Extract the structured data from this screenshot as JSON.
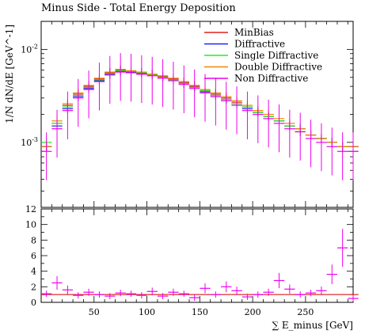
{
  "chart_data": {
    "type": "line",
    "title": "Minus Side - Total Energy Deposition",
    "xlabel": "∑ E_minus [GeV]",
    "ylabel": "1/N dN/dE [GeV^-1]",
    "xlim": [
      0,
      295
    ],
    "ylim_main": [
      0.0002,
      0.02
    ],
    "yscale_main": "log",
    "ylim_ratio": [
      0,
      12
    ],
    "x_ticks": [
      50,
      100,
      150,
      200,
      250
    ],
    "y_ticks_main": [
      "10^-3",
      "10^-2"
    ],
    "y_ticks_ratio": [
      0,
      2,
      4,
      6,
      8,
      10,
      12
    ],
    "legend_position": "top-right",
    "colors": {
      "MinBias": "#dd2222",
      "Diffractive": "#2222ee",
      "Single Diffractive": "#22ee22",
      "Double Diffractive": "#ee8800",
      "Non Diffractive": "#ee00ee"
    },
    "series": [
      {
        "name": "MinBias",
        "color": "#dd2222",
        "x": [
          5,
          15,
          25,
          35,
          45,
          55,
          65,
          75,
          85,
          95,
          105,
          115,
          125,
          135,
          145,
          155,
          165,
          175,
          185,
          195,
          205,
          215,
          225,
          235,
          245,
          255,
          265,
          275,
          285,
          295
        ],
        "y": [
          0.0009,
          0.0016,
          0.0025,
          0.0033,
          0.004,
          0.0048,
          0.0056,
          0.006,
          0.0058,
          0.0056,
          0.0054,
          0.0051,
          0.0048,
          0.0044,
          0.004,
          0.0036,
          0.0033,
          0.003,
          0.0027,
          0.0024,
          0.0021,
          0.0019,
          0.0017,
          0.0015,
          0.0013,
          0.0012,
          0.0011,
          0.001,
          0.0009,
          0.0009
        ]
      },
      {
        "name": "Diffractive",
        "color": "#2222ee",
        "x": [
          5,
          15,
          25,
          35,
          45,
          55,
          65,
          75,
          85,
          95,
          105,
          115,
          125,
          135,
          145,
          155,
          165,
          175,
          185,
          195,
          205,
          215,
          225,
          235,
          245,
          255,
          265,
          275,
          285,
          295
        ],
        "y": [
          0.0009,
          0.0015,
          0.0023,
          0.0031,
          0.0038,
          0.0046,
          0.0054,
          0.0058,
          0.0057,
          0.0055,
          0.0053,
          0.005,
          0.0047,
          0.0043,
          0.0039,
          0.0035,
          0.0032,
          0.0029,
          0.0026,
          0.0023,
          0.0021,
          0.0019,
          0.0017,
          0.0015,
          0.0014,
          0.0012,
          0.0011,
          0.001,
          0.0009,
          0.0009
        ]
      },
      {
        "name": "Single Diffractive",
        "color": "#22ee22",
        "x": [
          5,
          15,
          25,
          35,
          45,
          55,
          65,
          75,
          85,
          95,
          105,
          115,
          125,
          135,
          145,
          155,
          165,
          175,
          185,
          195,
          205,
          215,
          225,
          235,
          245,
          255,
          265,
          275,
          285,
          295
        ],
        "y": [
          0.001,
          0.0016,
          0.0024,
          0.0032,
          0.0039,
          0.0047,
          0.0055,
          0.0059,
          0.0058,
          0.0056,
          0.0053,
          0.005,
          0.0047,
          0.0043,
          0.0039,
          0.0036,
          0.0032,
          0.0029,
          0.0026,
          0.0024,
          0.0021,
          0.0019,
          0.0017,
          0.0015,
          0.0013,
          0.0012,
          0.0011,
          0.001,
          0.0009,
          0.0008
        ]
      },
      {
        "name": "Double Diffractive",
        "color": "#ee8800",
        "x": [
          5,
          15,
          25,
          35,
          45,
          55,
          65,
          75,
          85,
          95,
          105,
          115,
          125,
          135,
          145,
          155,
          165,
          175,
          185,
          195,
          205,
          215,
          225,
          235,
          245,
          255,
          265,
          275,
          285,
          295
        ],
        "y": [
          0.0009,
          0.0017,
          0.0026,
          0.0034,
          0.0041,
          0.0049,
          0.0057,
          0.0061,
          0.0059,
          0.0057,
          0.0054,
          0.0052,
          0.0049,
          0.0045,
          0.0041,
          0.0037,
          0.0034,
          0.0031,
          0.0028,
          0.0025,
          0.0022,
          0.002,
          0.0018,
          0.0016,
          0.0014,
          0.0012,
          0.0011,
          0.001,
          0.0009,
          0.0009
        ]
      },
      {
        "name": "Non Diffractive",
        "color": "#ee00ee",
        "x": [
          5,
          15,
          25,
          35,
          45,
          55,
          65,
          75,
          85,
          95,
          105,
          115,
          125,
          135,
          145,
          155,
          165,
          175,
          185,
          195,
          205,
          215,
          225,
          235,
          245,
          255,
          265,
          275,
          285,
          295
        ],
        "y": [
          0.0008,
          0.0014,
          0.0022,
          0.003,
          0.0037,
          0.0045,
          0.0053,
          0.0057,
          0.0056,
          0.0054,
          0.0052,
          0.0049,
          0.0046,
          0.0042,
          0.0038,
          0.0034,
          0.0031,
          0.0028,
          0.0025,
          0.0022,
          0.002,
          0.0018,
          0.0016,
          0.0014,
          0.0013,
          0.0011,
          0.001,
          0.0009,
          0.0008,
          0.0008
        ]
      }
    ],
    "ratio_series": [
      {
        "name": "MinBias",
        "color": "#dd2222",
        "x": [
          5,
          15,
          25,
          35,
          45,
          55,
          65,
          75,
          85,
          95,
          105,
          115,
          125,
          135,
          145,
          155,
          165,
          175,
          185,
          195,
          205,
          215,
          225,
          235,
          245,
          255,
          265,
          275,
          285,
          295
        ],
        "y": [
          1.0,
          1.0,
          1.0,
          1.0,
          1.0,
          1.0,
          1.0,
          1.0,
          1.0,
          1.0,
          1.0,
          1.0,
          1.0,
          1.0,
          1.0,
          1.0,
          1.0,
          1.0,
          1.0,
          1.0,
          1.0,
          1.0,
          1.0,
          1.0,
          1.0,
          1.0,
          1.0,
          1.0,
          1.0,
          1.0
        ]
      },
      {
        "name": "Non Diffractive",
        "color": "#ee00ee",
        "x": [
          5,
          15,
          25,
          35,
          45,
          55,
          65,
          75,
          85,
          95,
          105,
          115,
          125,
          135,
          145,
          155,
          165,
          175,
          185,
          195,
          205,
          215,
          225,
          235,
          245,
          255,
          265,
          275,
          285,
          295
        ],
        "y": [
          1.1,
          2.5,
          1.6,
          0.9,
          1.3,
          1.0,
          0.8,
          1.2,
          1.1,
          0.9,
          1.4,
          0.8,
          1.3,
          1.1,
          0.6,
          1.8,
          1.0,
          2.0,
          1.5,
          0.7,
          1.0,
          1.3,
          2.8,
          1.7,
          1.0,
          1.2,
          1.5,
          3.6,
          7.0,
          0.5
        ]
      }
    ]
  }
}
